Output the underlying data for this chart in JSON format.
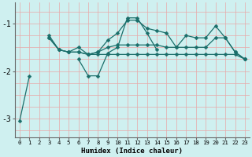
{
  "xlabel": "Humidex (Indice chaleur)",
  "bg_color": "#cff0f0",
  "line_color": "#1a6e6a",
  "grid_color_h": "#e8a8a8",
  "grid_color_v": "#e8a8a8",
  "x": [
    0,
    1,
    2,
    3,
    4,
    5,
    6,
    7,
    8,
    9,
    10,
    11,
    12,
    13,
    14,
    15,
    16,
    17,
    18,
    19,
    20,
    21,
    22,
    23
  ],
  "line1": [
    null,
    null,
    null,
    -1.3,
    -1.55,
    -1.6,
    -1.6,
    -1.65,
    -1.65,
    -1.65,
    -1.65,
    -1.65,
    -1.65,
    -1.65,
    -1.65,
    -1.65,
    -1.65,
    -1.65,
    -1.65,
    -1.65,
    -1.65,
    -1.65,
    -1.65,
    -1.75
  ],
  "line2": [
    null,
    null,
    null,
    -1.3,
    -1.55,
    -1.6,
    -1.6,
    -1.65,
    -1.6,
    -1.5,
    -1.45,
    -1.45,
    -1.45,
    -1.45,
    -1.45,
    -1.5,
    -1.5,
    -1.5,
    -1.5,
    -1.5,
    -1.3,
    -1.3,
    -1.6,
    -1.75
  ],
  "line3": [
    null,
    null,
    null,
    -1.25,
    -1.55,
    -1.6,
    -1.5,
    -1.65,
    -1.6,
    -1.35,
    -1.2,
    -0.93,
    -0.93,
    -1.1,
    -1.15,
    -1.2,
    -1.5,
    -1.25,
    -1.3,
    -1.3,
    -1.05,
    -1.3,
    -1.6,
    -1.75
  ],
  "line4": [
    -3.05,
    -2.1,
    null,
    null,
    null,
    null,
    -1.75,
    -2.1,
    -2.1,
    -1.62,
    -1.5,
    -0.88,
    -0.88,
    -1.2,
    -1.55,
    null,
    null,
    null,
    null,
    null,
    null,
    null,
    null,
    null
  ],
  "yticks": [
    -3,
    -2,
    -1
  ],
  "ylim": [
    -3.4,
    -0.55
  ],
  "xlim": [
    -0.5,
    23.5
  ]
}
